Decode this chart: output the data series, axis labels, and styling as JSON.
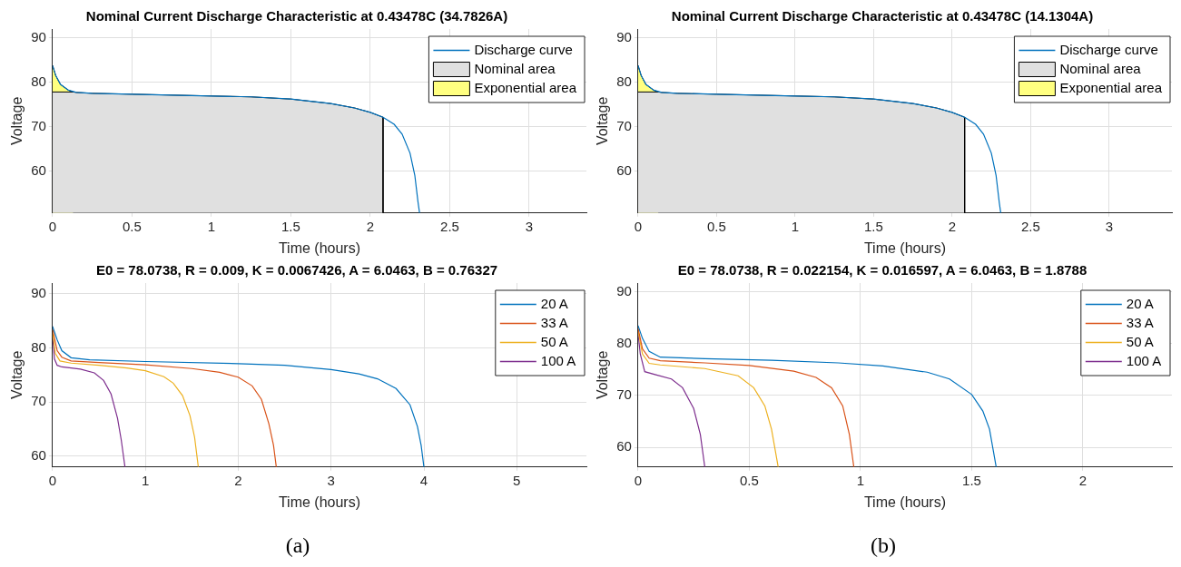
{
  "chart_data": [
    {
      "type": "line",
      "title": "Nominal Current Discharge Characteristic at 0.43478C (34.7826A)",
      "xlabel": "Time (hours)",
      "ylabel": "Voltage",
      "xlim": [
        0,
        3.36
      ],
      "xticks": [
        0,
        0.5,
        1,
        1.5,
        2,
        2.5,
        3
      ],
      "ylim": [
        50.5,
        92
      ],
      "yticks": [
        60,
        70,
        80,
        90
      ],
      "grid": true,
      "legend": "top right",
      "series": [
        {
          "name": "Discharge curve",
          "color": "#0072bd",
          "x": [
            0,
            0.02,
            0.05,
            0.1,
            0.15,
            0.25,
            0.5,
            1,
            1.25,
            1.5,
            1.75,
            1.9,
            2.0,
            2.08,
            2.15,
            2.2,
            2.25,
            2.28,
            2.3,
            2.31
          ],
          "values": [
            83.8,
            81.5,
            79.5,
            78.2,
            77.7,
            77.5,
            77.3,
            76.9,
            76.7,
            76.2,
            75.2,
            74.2,
            73.2,
            72.1,
            70.5,
            68.3,
            64,
            59,
            53,
            50.5
          ]
        },
        {
          "name": "Nominal area",
          "type": "area",
          "color": "#e0e0e0",
          "x": [
            0,
            0.13,
            0.15,
            0.25,
            0.5,
            1,
            1.25,
            1.5,
            1.75,
            1.9,
            2.0,
            2.08,
            2.08
          ],
          "values": [
            77.8,
            77.8,
            77.7,
            77.5,
            77.3,
            76.9,
            76.7,
            76.2,
            75.2,
            74.2,
            73.2,
            72.1,
            50.5
          ]
        },
        {
          "name": "Exponential area",
          "type": "area",
          "color": "#ffff80",
          "x": [
            0,
            0.02,
            0.05,
            0.1,
            0.13
          ],
          "values": [
            83.8,
            81.5,
            79.5,
            78.2,
            77.8
          ]
        }
      ]
    },
    {
      "type": "line",
      "title": "Nominal Current Discharge Characteristic at 0.43478C (14.1304A)",
      "xlabel": "Time (hours)",
      "ylabel": "Voltage",
      "xlim": [
        0,
        3.4
      ],
      "xticks": [
        0,
        0.5,
        1,
        1.5,
        2,
        2.5,
        3
      ],
      "ylim": [
        50.5,
        92
      ],
      "yticks": [
        60,
        70,
        80,
        90
      ],
      "grid": true,
      "legend": "top right",
      "series": [
        {
          "name": "Discharge curve",
          "color": "#0072bd",
          "x": [
            0,
            0.02,
            0.05,
            0.1,
            0.15,
            0.25,
            0.5,
            1,
            1.25,
            1.5,
            1.75,
            1.9,
            2.0,
            2.08,
            2.15,
            2.2,
            2.25,
            2.28,
            2.3,
            2.31
          ],
          "values": [
            83.8,
            81.5,
            79.5,
            78.2,
            77.7,
            77.5,
            77.3,
            76.9,
            76.7,
            76.2,
            75.2,
            74.2,
            73.2,
            72.1,
            70.5,
            68.3,
            64,
            59,
            53,
            50.5
          ]
        },
        {
          "name": "Nominal area",
          "type": "area",
          "color": "#e0e0e0",
          "x": [
            0,
            0.13,
            0.15,
            0.25,
            0.5,
            1,
            1.25,
            1.5,
            1.75,
            1.9,
            2.0,
            2.08,
            2.08
          ],
          "values": [
            77.8,
            77.8,
            77.7,
            77.5,
            77.3,
            76.9,
            76.7,
            76.2,
            75.2,
            74.2,
            73.2,
            72.1,
            50.5
          ]
        },
        {
          "name": "Exponential area",
          "type": "area",
          "color": "#ffff80",
          "x": [
            0,
            0.02,
            0.05,
            0.1,
            0.13
          ],
          "values": [
            83.8,
            81.5,
            79.5,
            78.2,
            77.8
          ]
        }
      ]
    },
    {
      "type": "line",
      "title": "E0 = 78.0738, R = 0.009, K = 0.0067426, A = 6.0463, B = 0.76327",
      "xlabel": "Time (hours)",
      "ylabel": "Voltage",
      "xlim": [
        0,
        5.75
      ],
      "xticks": [
        0,
        1,
        2,
        3,
        4,
        5
      ],
      "ylim": [
        58,
        92
      ],
      "yticks": [
        60,
        70,
        80,
        90
      ],
      "grid": true,
      "legend": "top right",
      "annotations": [
        "(a)"
      ],
      "series": [
        {
          "name": "20 A",
          "color": "#0072bd",
          "x": [
            0,
            0.05,
            0.1,
            0.2,
            0.4,
            1,
            2,
            2.5,
            3,
            3.3,
            3.5,
            3.7,
            3.85,
            3.93,
            3.97,
            4.0
          ],
          "values": [
            84,
            81.5,
            79.5,
            78.2,
            77.8,
            77.5,
            77.1,
            76.8,
            76,
            75.2,
            74.3,
            72.5,
            69.5,
            65.5,
            62,
            58
          ]
        },
        {
          "name": "33 A",
          "color": "#d95319",
          "x": [
            0,
            0.05,
            0.1,
            0.2,
            0.5,
            1,
            1.5,
            1.8,
            2,
            2.15,
            2.25,
            2.33,
            2.38,
            2.41
          ],
          "values": [
            83.5,
            79.5,
            78.3,
            77.6,
            77.3,
            76.9,
            76.2,
            75.5,
            74.6,
            73,
            70.5,
            66,
            62,
            58
          ]
        },
        {
          "name": "50 A",
          "color": "#edb120",
          "x": [
            0,
            0.03,
            0.08,
            0.2,
            0.5,
            0.8,
            1,
            1.2,
            1.3,
            1.4,
            1.48,
            1.53,
            1.57
          ],
          "values": [
            83,
            79,
            77.6,
            77.2,
            76.8,
            76.3,
            75.8,
            74.7,
            73.5,
            71.2,
            67.5,
            63.5,
            58
          ]
        },
        {
          "name": "100 A",
          "color": "#7e2f8e",
          "x": [
            0,
            0.02,
            0.05,
            0.1,
            0.3,
            0.45,
            0.55,
            0.63,
            0.7,
            0.74,
            0.78
          ],
          "values": [
            82.5,
            78,
            76.8,
            76.5,
            76.1,
            75.4,
            74,
            71.5,
            67,
            63,
            58
          ]
        }
      ]
    },
    {
      "type": "line",
      "title": "E0 = 78.0738, R = 0.022154, K = 0.016597, A = 6.0463, B = 1.8788",
      "xlabel": "Time (hours)",
      "ylabel": "Voltage",
      "xlim": [
        0,
        2.4
      ],
      "xticks": [
        0,
        0.5,
        1,
        1.5,
        2
      ],
      "ylim": [
        56.2,
        91.7
      ],
      "yticks": [
        60,
        70,
        80,
        90
      ],
      "grid": true,
      "legend": "top right",
      "annotations": [
        "(b)"
      ],
      "series": [
        {
          "name": "20 A",
          "color": "#0072bd",
          "x": [
            0,
            0.02,
            0.05,
            0.1,
            0.3,
            0.6,
            0.9,
            1.1,
            1.3,
            1.4,
            1.5,
            1.55,
            1.58,
            1.61
          ],
          "values": [
            83.5,
            81,
            78.5,
            77.4,
            77.1,
            76.8,
            76.3,
            75.7,
            74.5,
            73.2,
            70.2,
            67,
            63.5,
            56.2
          ]
        },
        {
          "name": "33 A",
          "color": "#d95319",
          "x": [
            0,
            0.02,
            0.05,
            0.1,
            0.3,
            0.5,
            0.7,
            0.8,
            0.87,
            0.92,
            0.95,
            0.97
          ],
          "values": [
            83,
            79,
            77.2,
            76.7,
            76.3,
            75.8,
            74.7,
            73.5,
            71.5,
            68,
            62.5,
            56.2
          ]
        },
        {
          "name": "50 A",
          "color": "#edb120",
          "x": [
            0,
            0.02,
            0.05,
            0.1,
            0.3,
            0.45,
            0.52,
            0.57,
            0.6,
            0.63
          ],
          "values": [
            82.5,
            78,
            76.2,
            75.9,
            75.2,
            73.8,
            71.5,
            68,
            63.5,
            56.2
          ]
        },
        {
          "name": "100 A",
          "color": "#7e2f8e",
          "x": [
            0,
            0.01,
            0.03,
            0.08,
            0.15,
            0.2,
            0.25,
            0.28,
            0.3
          ],
          "values": [
            82,
            78,
            74.6,
            74,
            73.2,
            71.5,
            67.5,
            62.5,
            56.2
          ]
        }
      ]
    }
  ]
}
